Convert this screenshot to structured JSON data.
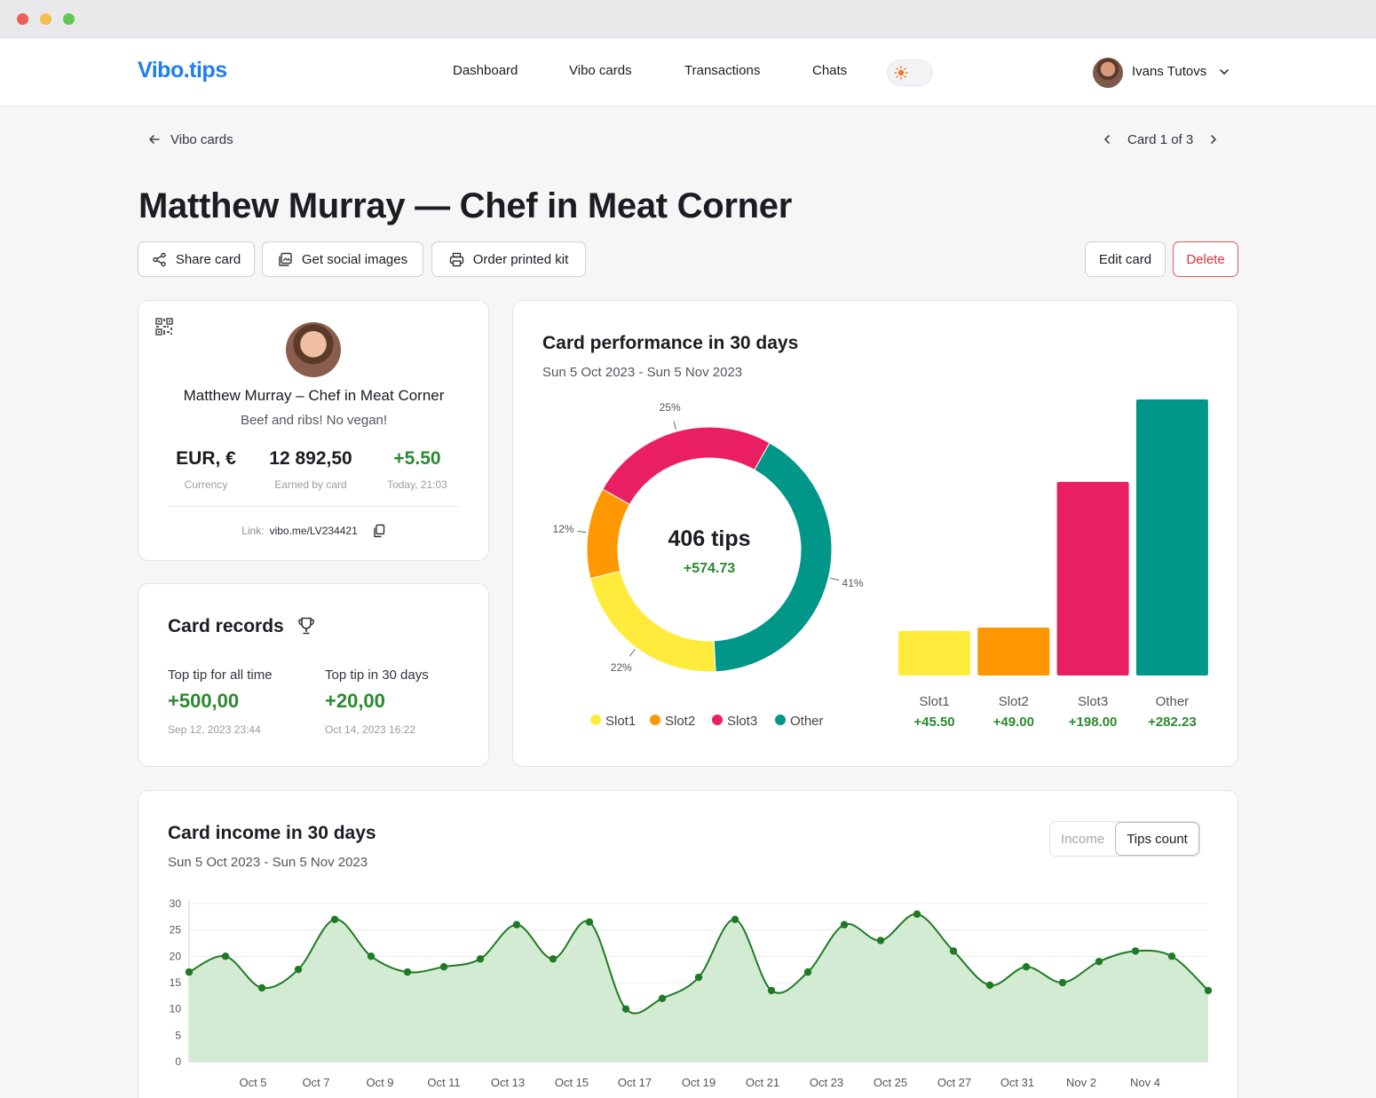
{
  "app": {
    "logo": "Vibo.tips",
    "nav": [
      "Dashboard",
      "Vibo cards",
      "Transactions",
      "Chats"
    ],
    "user_name": "Ivans Tutovs"
  },
  "breadcrumb": {
    "back_label": "Vibo cards",
    "pager_label": "Card 1 of 3"
  },
  "page": {
    "title": "Matthew Murray — Chef in Meat Corner"
  },
  "actions": {
    "share": "Share card",
    "social": "Get social images",
    "order": "Order printed kit",
    "edit": "Edit card",
    "delete": "Delete"
  },
  "profile": {
    "name": "Matthew Murray – Chef in Meat Corner",
    "subtitle": "Beef and ribs! No vegan!",
    "stats": [
      {
        "value": "EUR, €",
        "label": "Currency"
      },
      {
        "value": "12 892,50",
        "label": "Earned by card"
      },
      {
        "value": "+5.50",
        "label": "Today, 21:03"
      }
    ],
    "link_label": "Link:",
    "link_value": "vibo.me/LV234421"
  },
  "records": {
    "title": "Card records",
    "items": [
      {
        "label": "Top tip for all time",
        "value": "+500,00",
        "date": "Sep 12, 2023 23:44"
      },
      {
        "label": "Top tip in 30 days",
        "value": "+20,00",
        "date": "Oct 14, 2023 16:22"
      }
    ]
  },
  "performance": {
    "title": "Card performance in 30 days",
    "date_range": "Sun 5 Oct 2023 - Sun 5 Nov 2023",
    "center_value": "406 tips",
    "center_delta": "+574.73"
  },
  "income": {
    "title": "Card income in 30 days",
    "date_range": "Sun 5 Oct 2023 - Sun 5 Nov 2023",
    "toggle": [
      "Income",
      "Tips count"
    ],
    "toggle_active": "Tips count"
  },
  "colors": {
    "slot1": "#ffeb3b",
    "slot2": "#ff9800",
    "slot3": "#e91e63",
    "other": "#009688",
    "positive": "#2a8a2e",
    "brand": "#1f7df2"
  },
  "chart_data": [
    {
      "type": "pie",
      "categories": [
        "Slot1",
        "Slot2",
        "Slot3",
        "Other"
      ],
      "values": [
        22,
        12,
        25,
        41
      ],
      "value_labels": [
        "22%",
        "12%",
        "25%",
        "41%"
      ],
      "legend": "bottom"
    },
    {
      "type": "bar",
      "categories": [
        "Slot1",
        "Slot2",
        "Slot3",
        "Other"
      ],
      "values": [
        45.5,
        49.0,
        198.0,
        282.23
      ],
      "value_labels": [
        "+45.50",
        "+49.00",
        "+198.00",
        "+282.23"
      ]
    },
    {
      "type": "area",
      "x_ticks": [
        "Oct 5",
        "Oct 7",
        "Oct 9",
        "Oct 11",
        "Oct 13",
        "Oct 15",
        "Oct 17",
        "Oct 19",
        "Oct 21",
        "Oct 23",
        "Oct 25",
        "Oct 27",
        "Oct 31",
        "Nov 2",
        "Nov 4"
      ],
      "y_ticks": [
        "0",
        "5",
        "10",
        "15",
        "20",
        "25",
        "30"
      ],
      "ylim": [
        0,
        30
      ],
      "values": [
        17,
        20,
        14,
        17.5,
        27,
        20,
        17,
        18,
        19.5,
        26,
        19.5,
        26.5,
        10,
        12,
        16,
        27,
        13.5,
        17,
        26,
        23,
        28,
        21,
        14.5,
        18,
        15,
        19,
        21,
        20,
        13.5
      ],
      "grid": true
    }
  ]
}
